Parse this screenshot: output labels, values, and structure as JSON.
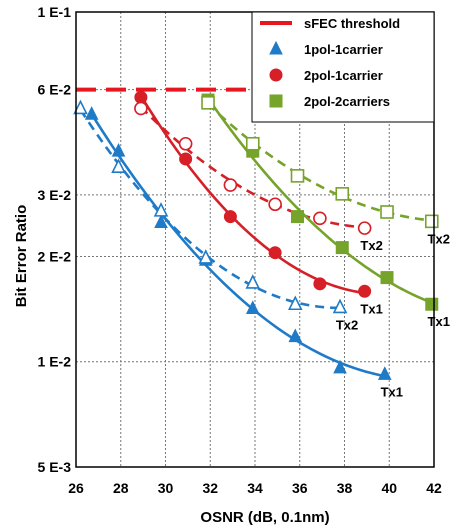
{
  "chart_data": {
    "type": "scatter",
    "title": "",
    "xlabel": "OSNR (dB, 0.1nm)",
    "ylabel": "Bit Error Ratio",
    "xlim": [
      26,
      42
    ],
    "ylim": [
      0.005,
      0.1
    ],
    "yscale": "log",
    "grid": true,
    "x_ticks": [
      26,
      28,
      30,
      32,
      34,
      36,
      38,
      40,
      42
    ],
    "x_tick_labels": [
      "26",
      "28",
      "30",
      "32",
      "34",
      "36",
      "38",
      "40",
      "42"
    ],
    "y_ticks": [
      0.1,
      0.06,
      0.03,
      0.02,
      0.01,
      0.005
    ],
    "y_tick_labels": [
      "1 E-1",
      "6 E-2",
      "3 E-2",
      "2 E-2",
      "1 E-2",
      "5 E-3"
    ],
    "threshold": {
      "name": "sFEC threshold",
      "value": 0.06,
      "color": "#e8171f"
    },
    "legend": {
      "position": "top-right",
      "entries": [
        "sFEC threshold",
        "1pol-1carrier",
        "2pol-1carrier",
        "2pol-2carriers"
      ]
    },
    "series": [
      {
        "name": "1pol-1carrier",
        "label": "Tx1",
        "marker": "triangle",
        "filled": true,
        "color": "#1f7bc8",
        "dashed": false,
        "x": [
          26.7,
          27.9,
          29.8,
          31.8,
          33.9,
          35.8,
          37.8,
          39.8
        ],
        "y": [
          0.051,
          0.04,
          0.025,
          0.0195,
          0.0142,
          0.0118,
          0.0096,
          0.0092
        ]
      },
      {
        "name": "1pol-1carrier",
        "label": "Tx2",
        "marker": "triangle",
        "filled": false,
        "color": "#1f7bc8",
        "dashed": true,
        "x": [
          26.2,
          27.9,
          29.8,
          31.8,
          33.9,
          35.8,
          37.8
        ],
        "y": [
          0.053,
          0.036,
          0.027,
          0.0198,
          0.0168,
          0.0146,
          0.0143
        ]
      },
      {
        "name": "2pol-1carrier",
        "label": "Tx1",
        "marker": "circle",
        "filled": true,
        "color": "#d61f26",
        "dashed": false,
        "x": [
          28.9,
          30.9,
          32.9,
          34.9,
          36.9,
          38.9
        ],
        "y": [
          0.057,
          0.038,
          0.026,
          0.0205,
          0.0167,
          0.0159
        ]
      },
      {
        "name": "2pol-1carrier",
        "label": "Tx2",
        "marker": "circle",
        "filled": false,
        "color": "#d61f26",
        "dashed": true,
        "x": [
          28.9,
          30.9,
          32.9,
          34.9,
          36.9,
          38.9
        ],
        "y": [
          0.053,
          0.042,
          0.032,
          0.0282,
          0.0257,
          0.0241
        ]
      },
      {
        "name": "2pol-2carriers",
        "label": "Tx1",
        "marker": "square",
        "filled": true,
        "color": "#76a32a",
        "dashed": false,
        "x": [
          31.9,
          33.9,
          35.9,
          37.9,
          39.9,
          41.9
        ],
        "y": [
          0.056,
          0.04,
          0.026,
          0.0212,
          0.0174,
          0.0146
        ]
      },
      {
        "name": "2pol-2carriers",
        "label": "Tx2",
        "marker": "square",
        "filled": false,
        "color": "#76a32a",
        "dashed": true,
        "x": [
          31.9,
          33.9,
          35.9,
          37.9,
          39.9,
          41.9
        ],
        "y": [
          0.055,
          0.042,
          0.034,
          0.0302,
          0.0268,
          0.0252
        ]
      }
    ]
  }
}
